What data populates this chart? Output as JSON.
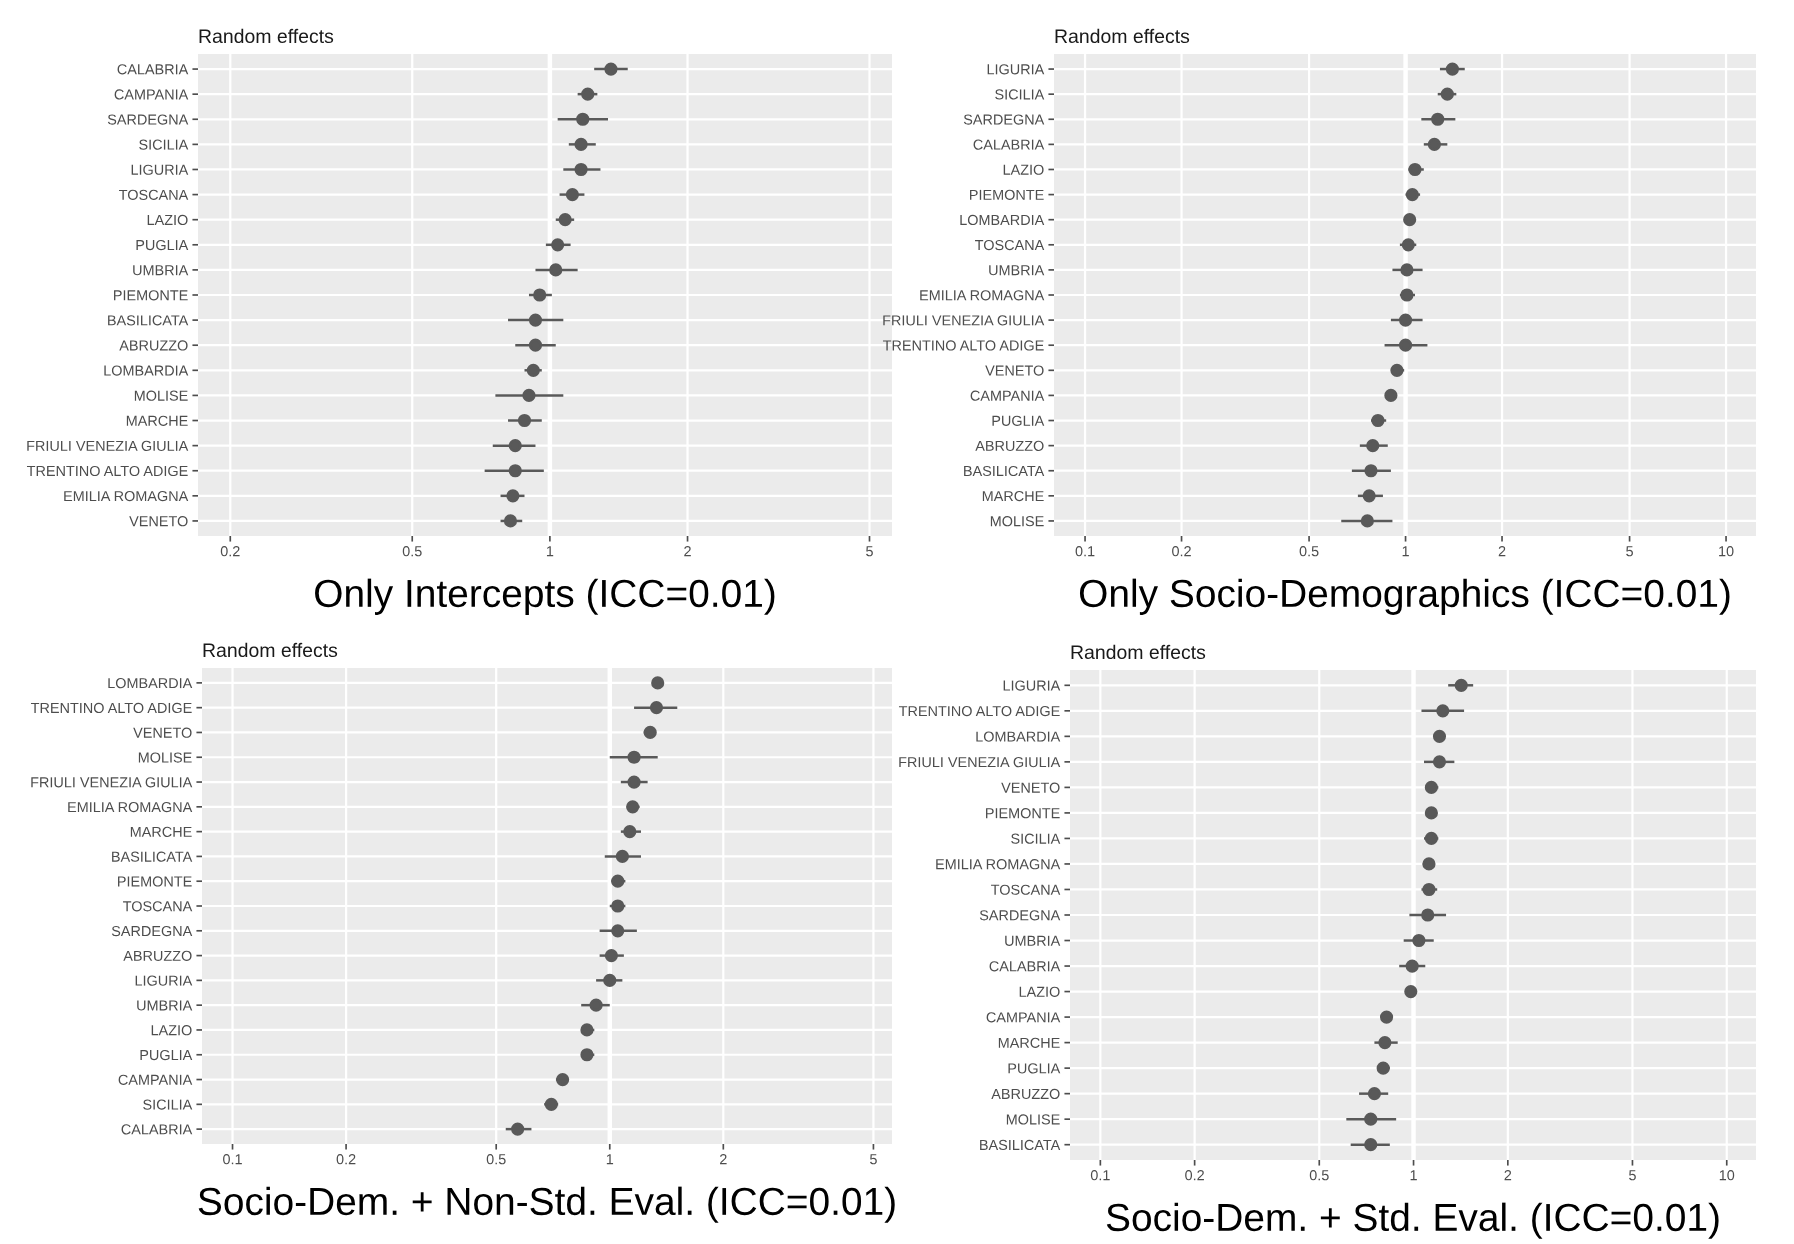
{
  "chart_data": [
    {
      "type": "scatter",
      "orientation": "horizontal",
      "log": "x",
      "title": "Random effects",
      "xlabel": "Only Intercepts (ICC=0.01)",
      "grid": true,
      "marker": "circle",
      "xlim": [
        0.17,
        5.6
      ],
      "xticks": [
        0.2,
        0.5,
        1,
        2,
        5
      ],
      "categories": [
        "CALABRIA",
        "CAMPANIA",
        "SARDEGNA",
        "SICILIA",
        "LIGURIA",
        "TOSCANA",
        "LAZIO",
        "PUGLIA",
        "UMBRIA",
        "PIEMONTE",
        "BASILICATA",
        "ABRUZZO",
        "LOMBARDIA",
        "MOLISE",
        "MARCHE",
        "FRIULI VENEZIA GIULIA",
        "TRENTINO ALTO ADIGE",
        "EMILIA ROMAGNA",
        "VENETO"
      ],
      "series": [
        {
          "color": "#595959",
          "values": [
            1.36,
            1.21,
            1.18,
            1.17,
            1.17,
            1.12,
            1.08,
            1.04,
            1.03,
            0.95,
            0.93,
            0.93,
            0.92,
            0.9,
            0.88,
            0.84,
            0.84,
            0.83,
            0.82
          ],
          "errors": [
            [
              1.25,
              1.48
            ],
            [
              1.15,
              1.27
            ],
            [
              1.04,
              1.34
            ],
            [
              1.1,
              1.26
            ],
            [
              1.07,
              1.29
            ],
            [
              1.05,
              1.19
            ],
            [
              1.03,
              1.13
            ],
            [
              0.98,
              1.11
            ],
            [
              0.93,
              1.15
            ],
            [
              0.9,
              1.01
            ],
            [
              0.81,
              1.07
            ],
            [
              0.84,
              1.03
            ],
            [
              0.88,
              0.96
            ],
            [
              0.76,
              1.07
            ],
            [
              0.81,
              0.96
            ],
            [
              0.75,
              0.93
            ],
            [
              0.72,
              0.97
            ],
            [
              0.78,
              0.88
            ],
            [
              0.78,
              0.87
            ]
          ]
        }
      ],
      "ref_lines": [
        {
          "axis": "x",
          "value": 1,
          "color": "#ffffff"
        }
      ]
    },
    {
      "type": "scatter",
      "orientation": "horizontal",
      "log": "x",
      "title": "Random effects",
      "xlabel": "Only Socio-Demographics (ICC=0.01)",
      "grid": true,
      "marker": "circle",
      "xlim": [
        0.08,
        12.4
      ],
      "xticks": [
        0.1,
        0.2,
        0.5,
        1,
        2,
        5,
        10
      ],
      "categories": [
        "LIGURIA",
        "SICILIA",
        "SARDEGNA",
        "CALABRIA",
        "LAZIO",
        "PIEMONTE",
        "LOMBARDIA",
        "TOSCANA",
        "UMBRIA",
        "EMILIA ROMAGNA",
        "FRIULI VENEZIA GIULIA",
        "TRENTINO ALTO ADIGE",
        "VENETO",
        "CAMPANIA",
        "PUGLIA",
        "ABRUZZO",
        "BASILICATA",
        "MARCHE",
        "MOLISE"
      ],
      "series": [
        {
          "color": "#595959",
          "values": [
            1.4,
            1.35,
            1.26,
            1.23,
            1.07,
            1.05,
            1.03,
            1.02,
            1.01,
            1.01,
            1.0,
            1.0,
            0.94,
            0.9,
            0.82,
            0.79,
            0.78,
            0.77,
            0.76
          ],
          "errors": [
            [
              1.28,
              1.53
            ],
            [
              1.26,
              1.44
            ],
            [
              1.12,
              1.43
            ],
            [
              1.14,
              1.35
            ],
            [
              1.02,
              1.14
            ],
            [
              1.0,
              1.11
            ],
            [
              1.0,
              1.07
            ],
            [
              0.96,
              1.08
            ],
            [
              0.91,
              1.13
            ],
            [
              0.96,
              1.07
            ],
            [
              0.9,
              1.13
            ],
            [
              0.86,
              1.17
            ],
            [
              0.9,
              0.99
            ],
            [
              0.87,
              0.94
            ],
            [
              0.78,
              0.87
            ],
            [
              0.72,
              0.88
            ],
            [
              0.68,
              0.9
            ],
            [
              0.71,
              0.85
            ],
            [
              0.63,
              0.91
            ]
          ]
        }
      ],
      "ref_lines": [
        {
          "axis": "x",
          "value": 1,
          "color": "#ffffff"
        }
      ]
    },
    {
      "type": "scatter",
      "orientation": "horizontal",
      "log": "x",
      "title": "Random effects",
      "xlabel": "Socio-Dem. + Non-Std. Eval. (ICC=0.01)",
      "grid": true,
      "marker": "circle",
      "xlim": [
        0.083,
        5.6
      ],
      "xticks": [
        0.1,
        0.2,
        0.5,
        1,
        2,
        5
      ],
      "categories": [
        "LOMBARDIA",
        "TRENTINO ALTO ADIGE",
        "VENETO",
        "MOLISE",
        "FRIULI VENEZIA GIULIA",
        "EMILIA ROMAGNA",
        "MARCHE",
        "BASILICATA",
        "PIEMONTE",
        "TOSCANA",
        "SARDEGNA",
        "ABRUZZO",
        "LIGURIA",
        "UMBRIA",
        "LAZIO",
        "PUGLIA",
        "CAMPANIA",
        "SICILIA",
        "CALABRIA"
      ],
      "series": [
        {
          "color": "#595959",
          "values": [
            1.34,
            1.33,
            1.28,
            1.16,
            1.16,
            1.15,
            1.13,
            1.08,
            1.05,
            1.05,
            1.05,
            1.01,
            1.0,
            0.92,
            0.87,
            0.87,
            0.75,
            0.7,
            0.57
          ],
          "errors": [
            [
              1.3,
              1.38
            ],
            [
              1.16,
              1.51
            ],
            [
              1.23,
              1.32
            ],
            [
              1.0,
              1.34
            ],
            [
              1.07,
              1.26
            ],
            [
              1.11,
              1.2
            ],
            [
              1.07,
              1.21
            ],
            [
              0.97,
              1.21
            ],
            [
              1.01,
              1.1
            ],
            [
              1.0,
              1.1
            ],
            [
              0.94,
              1.18
            ],
            [
              0.94,
              1.09
            ],
            [
              0.92,
              1.08
            ],
            [
              0.84,
              1.0
            ],
            [
              0.84,
              0.91
            ],
            [
              0.84,
              0.91
            ],
            [
              0.72,
              0.77
            ],
            [
              0.67,
              0.73
            ],
            [
              0.53,
              0.62
            ]
          ]
        }
      ],
      "ref_lines": [
        {
          "axis": "x",
          "value": 1,
          "color": "#ffffff"
        }
      ]
    },
    {
      "type": "scatter",
      "orientation": "horizontal",
      "log": "x",
      "title": "Random effects",
      "xlabel": "Socio-Dem. + Std. Eval. (ICC=0.01)",
      "grid": true,
      "marker": "circle",
      "xlim": [
        0.08,
        12.4
      ],
      "xticks": [
        0.1,
        0.2,
        0.5,
        1,
        2,
        5,
        10
      ],
      "categories": [
        "LIGURIA",
        "TRENTINO ALTO ADIGE",
        "LOMBARDIA",
        "FRIULI VENEZIA GIULIA",
        "VENETO",
        "PIEMONTE",
        "SICILIA",
        "EMILIA ROMAGNA",
        "TOSCANA",
        "SARDEGNA",
        "UMBRIA",
        "CALABRIA",
        "LAZIO",
        "CAMPANIA",
        "MARCHE",
        "PUGLIA",
        "ABRUZZO",
        "MOLISE",
        "BASILICATA"
      ],
      "series": [
        {
          "color": "#595959",
          "values": [
            1.42,
            1.24,
            1.21,
            1.21,
            1.14,
            1.14,
            1.14,
            1.12,
            1.12,
            1.11,
            1.04,
            0.99,
            0.98,
            0.82,
            0.81,
            0.8,
            0.75,
            0.73,
            0.73
          ],
          "errors": [
            [
              1.29,
              1.55
            ],
            [
              1.06,
              1.45
            ],
            [
              1.17,
              1.25
            ],
            [
              1.08,
              1.35
            ],
            [
              1.09,
              1.2
            ],
            [
              1.09,
              1.19
            ],
            [
              1.08,
              1.2
            ],
            [
              1.07,
              1.17
            ],
            [
              1.06,
              1.19
            ],
            [
              0.97,
              1.27
            ],
            [
              0.93,
              1.16
            ],
            [
              0.9,
              1.09
            ],
            [
              0.94,
              1.02
            ],
            [
              0.79,
              0.85
            ],
            [
              0.75,
              0.89
            ],
            [
              0.77,
              0.84
            ],
            [
              0.67,
              0.83
            ],
            [
              0.61,
              0.88
            ],
            [
              0.63,
              0.84
            ]
          ]
        }
      ],
      "ref_lines": [
        {
          "axis": "x",
          "value": 1,
          "color": "#ffffff"
        }
      ]
    }
  ]
}
